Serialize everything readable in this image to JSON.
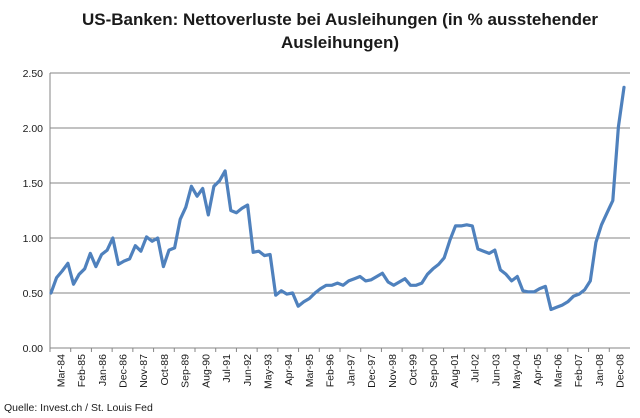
{
  "chart_data": {
    "type": "line",
    "title": "US-Banken: Nettoverluste bei Ausleihungen (in % ausstehender Ausleihungen)",
    "xlabel": "",
    "ylabel": "",
    "ylim": [
      0,
      2.5
    ],
    "yticks": [
      "0.00",
      "0.50",
      "1.00",
      "1.50",
      "2.00",
      "2.50"
    ],
    "grid": true,
    "legend": "none",
    "line_color": "#4f81bd",
    "x_tick_labels": [
      "Mar-84",
      "Feb-85",
      "Jan-86",
      "Dec-86",
      "Nov-87",
      "Oct-88",
      "Sep-89",
      "Aug-90",
      "Jul-91",
      "Jun-92",
      "May-93",
      "Apr-94",
      "Mar-95",
      "Feb-96",
      "Jan-97",
      "Dec-97",
      "Nov-98",
      "Oct-99",
      "Sep-00",
      "Aug-01",
      "Jul-02",
      "Jun-03",
      "May-04",
      "Apr-05",
      "Mar-06",
      "Feb-07",
      "Jan-08",
      "Dec-08"
    ],
    "series": [
      {
        "values": [
          0.5,
          0.64,
          0.7,
          0.77,
          0.58,
          0.67,
          0.72,
          0.86,
          0.74,
          0.85,
          0.89,
          1.0,
          0.76,
          0.79,
          0.81,
          0.93,
          0.88,
          1.01,
          0.97,
          1.0,
          0.74,
          0.89,
          0.91,
          1.17,
          1.28,
          1.47,
          1.38,
          1.45,
          1.21,
          1.47,
          1.52,
          1.61,
          1.25,
          1.23,
          1.27,
          1.3,
          0.87,
          0.88,
          0.84,
          0.85,
          0.48,
          0.52,
          0.49,
          0.5,
          0.38,
          0.42,
          0.45,
          0.5,
          0.54,
          0.57,
          0.57,
          0.59,
          0.57,
          0.61,
          0.63,
          0.65,
          0.61,
          0.62,
          0.65,
          0.68,
          0.6,
          0.57,
          0.6,
          0.63,
          0.57,
          0.57,
          0.59,
          0.67,
          0.72,
          0.76,
          0.82,
          0.98,
          1.11,
          1.11,
          1.12,
          1.11,
          0.9,
          0.88,
          0.86,
          0.89,
          0.71,
          0.67,
          0.61,
          0.65,
          0.52,
          0.51,
          0.51,
          0.54,
          0.56,
          0.35,
          0.37,
          0.39,
          0.42,
          0.47,
          0.49,
          0.53,
          0.61,
          0.96,
          1.12,
          1.23,
          1.34,
          2.01,
          2.37
        ]
      }
    ],
    "source": "Quelle: Invest.ch / St. Louis Fed"
  }
}
